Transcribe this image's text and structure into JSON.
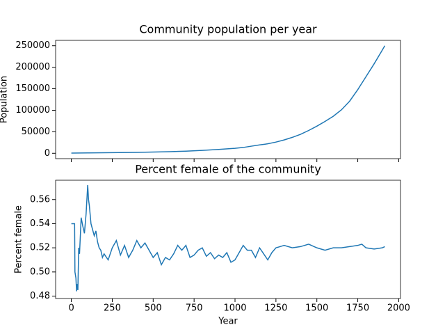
{
  "chart_data": [
    {
      "type": "line",
      "title": "Community population per year",
      "ylabel": "Population",
      "x": [
        0,
        100,
        200,
        300,
        400,
        500,
        600,
        700,
        800,
        900,
        1000,
        1050,
        1100,
        1150,
        1200,
        1250,
        1300,
        1350,
        1400,
        1450,
        1500,
        1550,
        1600,
        1650,
        1700,
        1750,
        1800,
        1850,
        1900,
        1915
      ],
      "series": [
        {
          "color": "#1f77b4",
          "values": [
            500,
            800,
            1200,
            1600,
            2100,
            2800,
            3700,
            4900,
            6700,
            9000,
            11500,
            13500,
            16500,
            19500,
            22000,
            26000,
            31000,
            37000,
            44000,
            53000,
            63000,
            74000,
            86000,
            101000,
            121000,
            148000,
            178000,
            208000,
            240000,
            250000
          ]
        }
      ],
      "xlim": [
        -96,
        2011
      ],
      "xticks": [
        0,
        250,
        500,
        750,
        1000,
        1250,
        1500,
        1750,
        2000
      ],
      "show_xtick_labels": false,
      "ylim": [
        -12500,
        262500
      ],
      "yticks": [
        0,
        50000,
        100000,
        150000,
        200000,
        250000
      ]
    },
    {
      "type": "line",
      "title": "Percent female of the community",
      "ylabel": "Percent female",
      "xlabel": "Year",
      "x": [
        0,
        20,
        22,
        28,
        32,
        36,
        40,
        45,
        50,
        60,
        70,
        80,
        90,
        100,
        105,
        110,
        120,
        130,
        140,
        150,
        160,
        170,
        180,
        190,
        200,
        225,
        250,
        275,
        300,
        325,
        350,
        375,
        400,
        425,
        450,
        475,
        500,
        525,
        550,
        575,
        600,
        625,
        650,
        675,
        700,
        725,
        750,
        775,
        800,
        825,
        850,
        875,
        900,
        925,
        950,
        975,
        1000,
        1025,
        1050,
        1075,
        1100,
        1125,
        1150,
        1175,
        1200,
        1225,
        1250,
        1275,
        1300,
        1350,
        1400,
        1450,
        1500,
        1550,
        1600,
        1650,
        1700,
        1750,
        1775,
        1800,
        1850,
        1900,
        1915
      ],
      "series": [
        {
          "color": "#1f77b4",
          "values": [
            0.54,
            0.54,
            0.5,
            0.495,
            0.484,
            0.49,
            0.485,
            0.52,
            0.515,
            0.545,
            0.538,
            0.532,
            0.548,
            0.572,
            0.56,
            0.555,
            0.54,
            0.535,
            0.53,
            0.534,
            0.525,
            0.52,
            0.518,
            0.512,
            0.515,
            0.51,
            0.52,
            0.526,
            0.514,
            0.522,
            0.512,
            0.518,
            0.526,
            0.52,
            0.524,
            0.518,
            0.512,
            0.516,
            0.506,
            0.512,
            0.51,
            0.515,
            0.522,
            0.518,
            0.522,
            0.512,
            0.514,
            0.518,
            0.52,
            0.513,
            0.516,
            0.511,
            0.514,
            0.512,
            0.516,
            0.508,
            0.51,
            0.516,
            0.522,
            0.518,
            0.518,
            0.512,
            0.52,
            0.515,
            0.51,
            0.516,
            0.52,
            0.521,
            0.522,
            0.52,
            0.521,
            0.523,
            0.52,
            0.518,
            0.52,
            0.52,
            0.521,
            0.522,
            0.523,
            0.52,
            0.519,
            0.52,
            0.521
          ]
        }
      ],
      "xlim": [
        -96,
        2011
      ],
      "xticks": [
        0,
        250,
        500,
        750,
        1000,
        1250,
        1500,
        1750,
        2000
      ],
      "show_xtick_labels": true,
      "ylim": [
        0.478,
        0.576
      ],
      "yticks": [
        0.48,
        {
          "value": 0.5,
          "label": "0.50"
        },
        0.52,
        0.54,
        0.56
      ]
    }
  ]
}
